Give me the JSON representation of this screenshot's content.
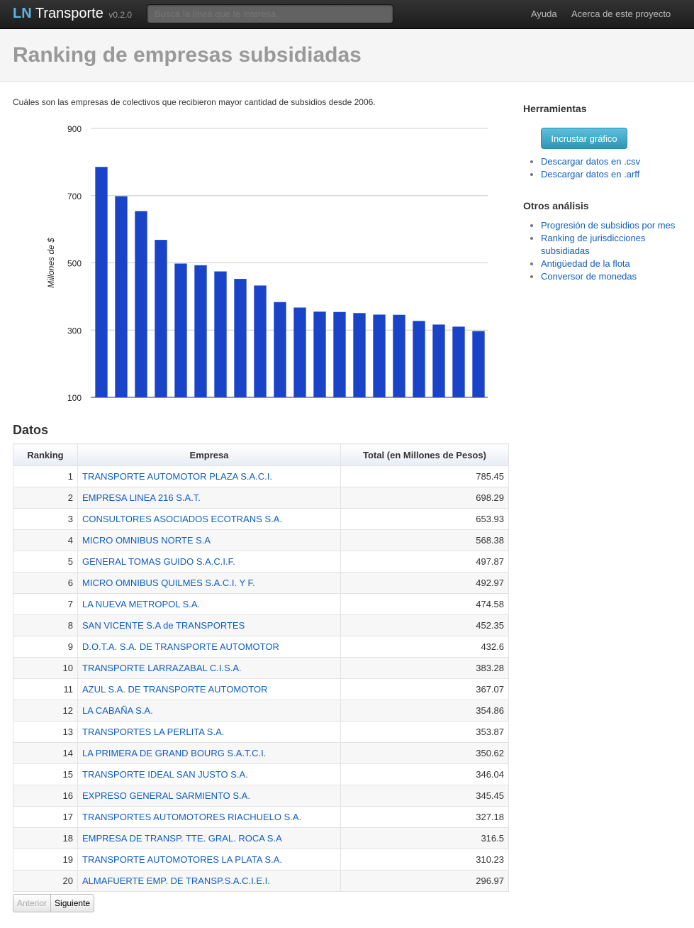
{
  "navbar": {
    "brand_ln": "LN",
    "brand_name": "Transporte",
    "version": "v0.2.0",
    "search_placeholder": "Buscá la línea que te interesa",
    "links": [
      "Ayuda",
      "Acerca de este proyecto"
    ]
  },
  "header": {
    "title": "Ranking de empresas subsidiadas"
  },
  "intro": "Cuáles son las empresas de colectivos que recibieron mayor cantidad de subsidios desde 2006.",
  "chart_data": {
    "type": "bar",
    "ylabel": "Millones de $",
    "ylim": [
      100,
      900
    ],
    "yticks": [
      900,
      700,
      500,
      300,
      100
    ],
    "grid": true,
    "color": "#1a44c8",
    "categories": [
      "TRANSPORTE AUTOMOTOR PLAZA S.A.C.I.",
      "EMPRESA LINEA 216 S.A.T.",
      "CONSULTORES ASOCIADOS ECOTRANS S.A.",
      "MICRO OMNIBUS NORTE S.A",
      "GENERAL TOMAS GUIDO S.A.C.I.F.",
      "MICRO OMNIBUS QUILMES S.A.C.I. Y F.",
      "LA NUEVA METROPOL S.A.",
      "SAN VICENTE S.A de TRANSPORTES",
      "D.O.T.A. S.A. DE TRANSPORTE AUTOMOTOR",
      "TRANSPORTE LARRAZABAL C.I.S.A.",
      "AZUL S.A. DE TRANSPORTE AUTOMOTOR",
      "LA CABAÑA S.A.",
      "TRANSPORTES LA PERLITA S.A.",
      "LA PRIMERA DE GRAND BOURG S.A.T.C.I.",
      "TRANSPORTE IDEAL SAN JUSTO S.A.",
      "EXPRESO GENERAL SARMIENTO S.A.",
      "TRANSPORTES AUTOMOTORES RIACHUELO S.A.",
      "EMPRESA DE TRANSP. TTE. GRAL. ROCA S.A",
      "TRANSPORTE AUTOMOTORES LA PLATA S.A.",
      "ALMAFUERTE EMP. DE TRANSP.S.A.C.I.E.I."
    ],
    "values": [
      785.45,
      698.29,
      653.93,
      568.38,
      497.87,
      492.97,
      474.58,
      452.35,
      432.6,
      383.28,
      367.07,
      354.86,
      353.87,
      350.62,
      346.04,
      345.45,
      327.18,
      316.5,
      310.23,
      296.97
    ]
  },
  "table": {
    "title": "Datos",
    "headers": [
      "Ranking",
      "Empresa",
      "Total (en Millones de Pesos)"
    ],
    "rows": [
      {
        "rank": "1",
        "empresa": "TRANSPORTE AUTOMOTOR PLAZA S.A.C.I.",
        "total": "785.45"
      },
      {
        "rank": "2",
        "empresa": "EMPRESA LINEA 216 S.A.T.",
        "total": "698.29"
      },
      {
        "rank": "3",
        "empresa": "CONSULTORES ASOCIADOS ECOTRANS S.A.",
        "total": "653.93"
      },
      {
        "rank": "4",
        "empresa": "MICRO OMNIBUS NORTE S.A",
        "total": "568.38"
      },
      {
        "rank": "5",
        "empresa": "GENERAL TOMAS GUIDO S.A.C.I.F.",
        "total": "497.87"
      },
      {
        "rank": "6",
        "empresa": "MICRO OMNIBUS QUILMES S.A.C.I. Y F.",
        "total": "492.97"
      },
      {
        "rank": "7",
        "empresa": "LA NUEVA METROPOL S.A.",
        "total": "474.58"
      },
      {
        "rank": "8",
        "empresa": "SAN VICENTE S.A de TRANSPORTES",
        "total": "452.35"
      },
      {
        "rank": "9",
        "empresa": "D.O.T.A. S.A. DE TRANSPORTE AUTOMOTOR",
        "total": "432.6"
      },
      {
        "rank": "10",
        "empresa": "TRANSPORTE LARRAZABAL C.I.S.A.",
        "total": "383.28"
      },
      {
        "rank": "11",
        "empresa": "AZUL S.A. DE TRANSPORTE AUTOMOTOR",
        "total": "367.07"
      },
      {
        "rank": "12",
        "empresa": "LA CABAÑA S.A.",
        "total": "354.86"
      },
      {
        "rank": "13",
        "empresa": "TRANSPORTES LA PERLITA S.A.",
        "total": "353.87"
      },
      {
        "rank": "14",
        "empresa": "LA PRIMERA DE GRAND BOURG S.A.T.C.I.",
        "total": "350.62"
      },
      {
        "rank": "15",
        "empresa": "TRANSPORTE IDEAL SAN JUSTO S.A.",
        "total": "346.04"
      },
      {
        "rank": "16",
        "empresa": "EXPRESO GENERAL SARMIENTO S.A.",
        "total": "345.45"
      },
      {
        "rank": "17",
        "empresa": "TRANSPORTES AUTOMOTORES RIACHUELO S.A.",
        "total": "327.18"
      },
      {
        "rank": "18",
        "empresa": "EMPRESA DE TRANSP. TTE. GRAL. ROCA S.A",
        "total": "316.5"
      },
      {
        "rank": "19",
        "empresa": "TRANSPORTE AUTOMOTORES LA PLATA S.A.",
        "total": "310.23"
      },
      {
        "rank": "20",
        "empresa": "ALMAFUERTE EMP. DE TRANSP.S.A.C.I.E.I.",
        "total": "296.97"
      }
    ]
  },
  "pager": {
    "prev": "Anterior",
    "next": "Siguiente"
  },
  "sidebar": {
    "tools_title": "Herramientas",
    "embed_button": "Incrustar gráfico",
    "tools_links": [
      "Descargar datos en .csv",
      "Descargar datos en .arff"
    ],
    "otros_title": "Otros análisis",
    "otros_links": [
      "Progresión de subsidios por mes",
      "Ranking de jurisdicciones subsidiadas",
      "Antigüedad de la flota",
      "Conversor de monedas"
    ]
  }
}
